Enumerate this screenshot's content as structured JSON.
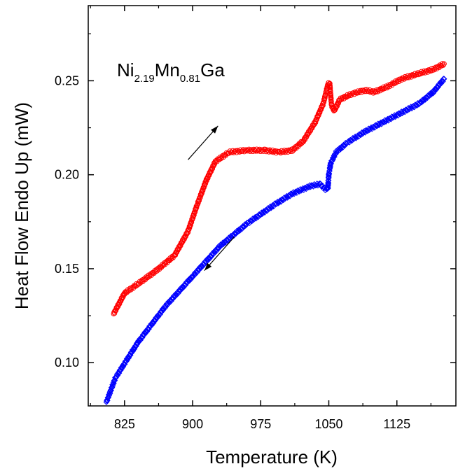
{
  "chart_data": {
    "type": "scatter",
    "xlabel": "Temperature (K)",
    "ylabel": "Heat Flow Endo Up (mW)",
    "xlim": [
      785,
      1190
    ],
    "ylim": [
      0.077,
      0.29
    ],
    "xticks": [
      "825",
      "900",
      "975",
      "1050",
      "1125"
    ],
    "xtick_values": [
      825,
      900,
      975,
      1050,
      1125
    ],
    "yticks": [
      "0.10",
      "0.15",
      "0.20",
      "0.25"
    ],
    "ytick_values": [
      0.1,
      0.15,
      0.2,
      0.25
    ],
    "annotation": {
      "base1": "Ni",
      "sub1": "2.19",
      "base2": "Mn",
      "sub2": "0.81",
      "base3": "Ga"
    },
    "series": [
      {
        "direction": "heating",
        "color": "#ff0000",
        "marker": "circle",
        "points": [
          [
            813,
            0.126
          ],
          [
            825,
            0.137
          ],
          [
            840,
            0.142
          ],
          [
            860,
            0.149
          ],
          [
            880,
            0.157
          ],
          [
            895,
            0.17
          ],
          [
            905,
            0.184
          ],
          [
            915,
            0.197
          ],
          [
            925,
            0.207
          ],
          [
            940,
            0.212
          ],
          [
            960,
            0.213
          ],
          [
            980,
            0.213
          ],
          [
            995,
            0.212
          ],
          [
            1010,
            0.213
          ],
          [
            1022,
            0.218
          ],
          [
            1035,
            0.228
          ],
          [
            1044,
            0.238
          ],
          [
            1049,
            0.248
          ],
          [
            1051,
            0.249
          ],
          [
            1053,
            0.237
          ],
          [
            1056,
            0.234
          ],
          [
            1062,
            0.24
          ],
          [
            1075,
            0.243
          ],
          [
            1090,
            0.245
          ],
          [
            1100,
            0.244
          ],
          [
            1115,
            0.247
          ],
          [
            1130,
            0.251
          ],
          [
            1150,
            0.254
          ],
          [
            1165,
            0.256
          ],
          [
            1177,
            0.259
          ]
        ]
      },
      {
        "direction": "cooling",
        "color": "#0000ff",
        "marker": "diamond",
        "points": [
          [
            1177,
            0.251
          ],
          [
            1165,
            0.244
          ],
          [
            1150,
            0.238
          ],
          [
            1130,
            0.233
          ],
          [
            1110,
            0.228
          ],
          [
            1090,
            0.223
          ],
          [
            1070,
            0.217
          ],
          [
            1058,
            0.212
          ],
          [
            1052,
            0.206
          ],
          [
            1050,
            0.2
          ],
          [
            1049,
            0.193
          ],
          [
            1047,
            0.192
          ],
          [
            1040,
            0.195
          ],
          [
            1030,
            0.194
          ],
          [
            1010,
            0.19
          ],
          [
            990,
            0.184
          ],
          [
            960,
            0.174
          ],
          [
            930,
            0.162
          ],
          [
            900,
            0.146
          ],
          [
            870,
            0.13
          ],
          [
            840,
            0.111
          ],
          [
            815,
            0.092
          ],
          [
            805,
            0.079
          ]
        ]
      }
    ],
    "arrows": [
      {
        "direction": "heating",
        "from": [
          895,
          0.208
        ],
        "to": [
          928,
          0.226
        ]
      },
      {
        "direction": "cooling",
        "from": [
          946,
          0.167
        ],
        "to": [
          913,
          0.149
        ]
      }
    ]
  }
}
